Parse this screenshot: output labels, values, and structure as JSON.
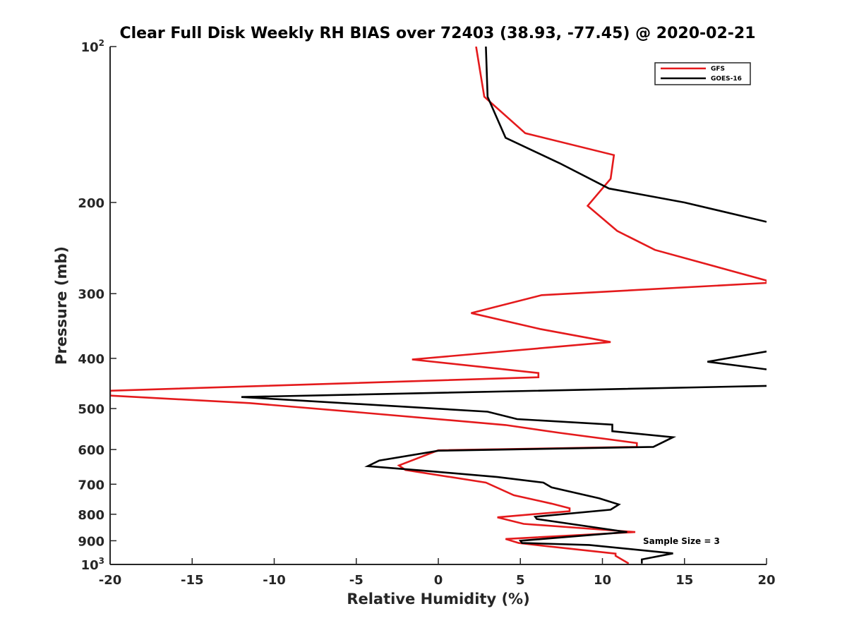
{
  "chart_data": {
    "type": "line",
    "title": "Clear Full Disk Weekly RH BIAS over 72403 (38.93, -77.45) @ 2020-02-21",
    "xlabel": "Relative Humidity (%)",
    "ylabel": "Pressure (mb)",
    "xlim": [
      -20,
      20
    ],
    "ylim": [
      100,
      1000
    ],
    "y_scale": "log",
    "y_reversed": true,
    "grid": false,
    "legend_position": "top-right",
    "x_ticks": [
      "-20",
      "-15",
      "-10",
      "-5",
      "0",
      "5",
      "10",
      "15",
      "20"
    ],
    "y_ticks": [
      {
        "value": 100,
        "base": "10",
        "exp": "2"
      },
      {
        "value": 200,
        "label": "200"
      },
      {
        "value": 300,
        "label": "300"
      },
      {
        "value": 400,
        "label": "400"
      },
      {
        "value": 500,
        "label": "500"
      },
      {
        "value": 600,
        "label": "600"
      },
      {
        "value": 700,
        "label": "700"
      },
      {
        "value": 800,
        "label": "800"
      },
      {
        "value": 900,
        "label": "900"
      },
      {
        "value": 1000,
        "base": "10",
        "exp": "3"
      }
    ],
    "annotation": "Sample Size = 3",
    "series": [
      {
        "name": "GFS",
        "color": "#e41a1c",
        "points": [
          [
            2.3,
            100
          ],
          [
            2.8,
            125
          ],
          [
            5.3,
            147
          ],
          [
            10.7,
            162
          ],
          [
            10.5,
            180
          ],
          [
            9.1,
            203
          ],
          [
            10.9,
            227
          ],
          [
            13.2,
            247
          ],
          [
            20,
            283
          ],
          [
            20,
            286
          ],
          [
            6.3,
            302
          ],
          [
            2.0,
            327
          ],
          [
            6.2,
            351
          ],
          [
            10.5,
            372
          ],
          [
            -1.6,
            402
          ],
          [
            6.1,
            427
          ],
          [
            6.1,
            435
          ],
          [
            -20,
            462
          ],
          [
            -20,
            472
          ],
          [
            -11.5,
            488
          ],
          [
            -5.0,
            508
          ],
          [
            4.1,
            538
          ],
          [
            7.4,
            557
          ],
          [
            12.1,
            583
          ],
          [
            12.1,
            593
          ],
          [
            0.0,
            602
          ],
          [
            -2.4,
            644
          ],
          [
            -2.0,
            657
          ],
          [
            2.9,
            695
          ],
          [
            4.6,
            735
          ],
          [
            6.9,
            763
          ],
          [
            8.0,
            779
          ],
          [
            8.0,
            789
          ],
          [
            3.6,
            811
          ],
          [
            5.2,
            835
          ],
          [
            12.0,
            866
          ],
          [
            4.1,
            893
          ],
          [
            4.9,
            909
          ],
          [
            6.5,
            921
          ],
          [
            10.8,
            953
          ],
          [
            10.8,
            962
          ],
          [
            11.6,
            996
          ]
        ]
      },
      {
        "name": "GOES-16",
        "color": "#000000",
        "points": [
          [
            2.9,
            100
          ],
          [
            3.0,
            125
          ],
          [
            4.1,
            150
          ],
          [
            7.4,
            168
          ],
          [
            10.4,
            188
          ],
          [
            15.0,
            200
          ],
          [
            20,
            218
          ],
          [
            null,
            null
          ],
          [
            20,
            388
          ],
          [
            16.4,
            406
          ],
          [
            20,
            420
          ],
          [
            null,
            null
          ],
          [
            20,
            452
          ],
          [
            -12.0,
            475
          ],
          [
            3.0,
            507
          ],
          [
            4.8,
            524
          ],
          [
            10.6,
            537
          ],
          [
            10.6,
            553
          ],
          [
            14.3,
            568
          ],
          [
            13.1,
            593
          ],
          [
            0.0,
            603
          ],
          [
            -3.6,
            630
          ],
          [
            -4.3,
            646
          ],
          [
            -0.9,
            659
          ],
          [
            3.6,
            678
          ],
          [
            6.4,
            695
          ],
          [
            6.9,
            710
          ],
          [
            9.8,
            745
          ],
          [
            11.0,
            766
          ],
          [
            10.5,
            784
          ],
          [
            5.9,
            809
          ],
          [
            6.0,
            817
          ],
          [
            11.5,
            866
          ],
          [
            5.0,
            900
          ],
          [
            5.1,
            909
          ],
          [
            9.2,
            917
          ],
          [
            14.3,
            952
          ],
          [
            12.4,
            978
          ],
          [
            12.4,
            996
          ]
        ]
      }
    ]
  }
}
